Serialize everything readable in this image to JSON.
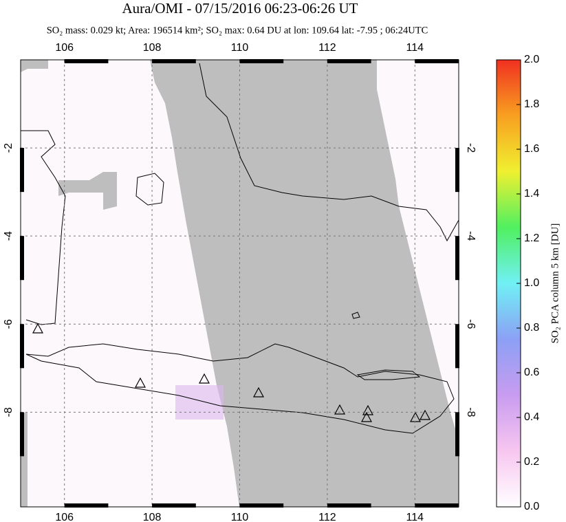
{
  "chart_data": {
    "type": "map",
    "title": "Aura/OMI - 07/15/2016 06:23-06:26 UT",
    "subtitle": "SO₂ mass: 0.029 kt; Area: 196514 km²; SO₂ max: 0.64 DU at lon: 109.64 lat: -7.95 ; 06:24UTC",
    "xlim": [
      105,
      115
    ],
    "ylim": [
      -10.15,
      0
    ],
    "xticks": [
      106,
      108,
      110,
      112,
      114
    ],
    "yticks": [
      -2,
      -4,
      -6,
      -8
    ],
    "grid": true,
    "colorbar": {
      "label": "SO₂ PCA column 5 km [DU]",
      "lim": [
        0,
        2
      ],
      "colors": [
        "#ffffff",
        "#f7c6f0",
        "#c89cf0",
        "#8ca0f5",
        "#70f0f5",
        "#50f060",
        "#f0f030",
        "#f8a020",
        "#f03020"
      ],
      "ticks": [
        {
          "value": 0,
          "label": "0.0"
        },
        0.2,
        0.4,
        0.6,
        0.8,
        {
          "value": 1,
          "label": "1.0"
        },
        1.2,
        1.4,
        1.6,
        1.8,
        {
          "value": 2,
          "label": "2.0"
        }
      ]
    }
  }
}
